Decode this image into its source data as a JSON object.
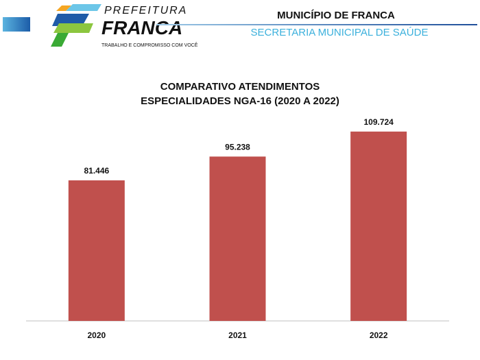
{
  "header": {
    "logo_text": "PREFEITURA FRANCA",
    "logo_tagline": "TRABALHO E COMPROMISSO COM VOCÊ",
    "municipality": "MUNICÍPIO DE FRANCA",
    "secretariat": "SECRETARIA MUNICIPAL DE SAÚDE"
  },
  "colors": {
    "bar": "#C0504D",
    "secretariat_text": "#3BB0DC"
  },
  "chart_data": {
    "type": "bar",
    "title_line1": "COMPARATIVO ATENDIMENTOS",
    "title_line2": "ESPECIALIDADES NGA-16 (2020 A 2022)",
    "categories": [
      "2020",
      "2021",
      "2022"
    ],
    "values": [
      81446,
      95238,
      109724
    ],
    "data_labels": [
      "81.446",
      "95.238",
      "109.724"
    ],
    "ylim": [
      0,
      120000
    ],
    "grid": false,
    "legend": "none"
  }
}
